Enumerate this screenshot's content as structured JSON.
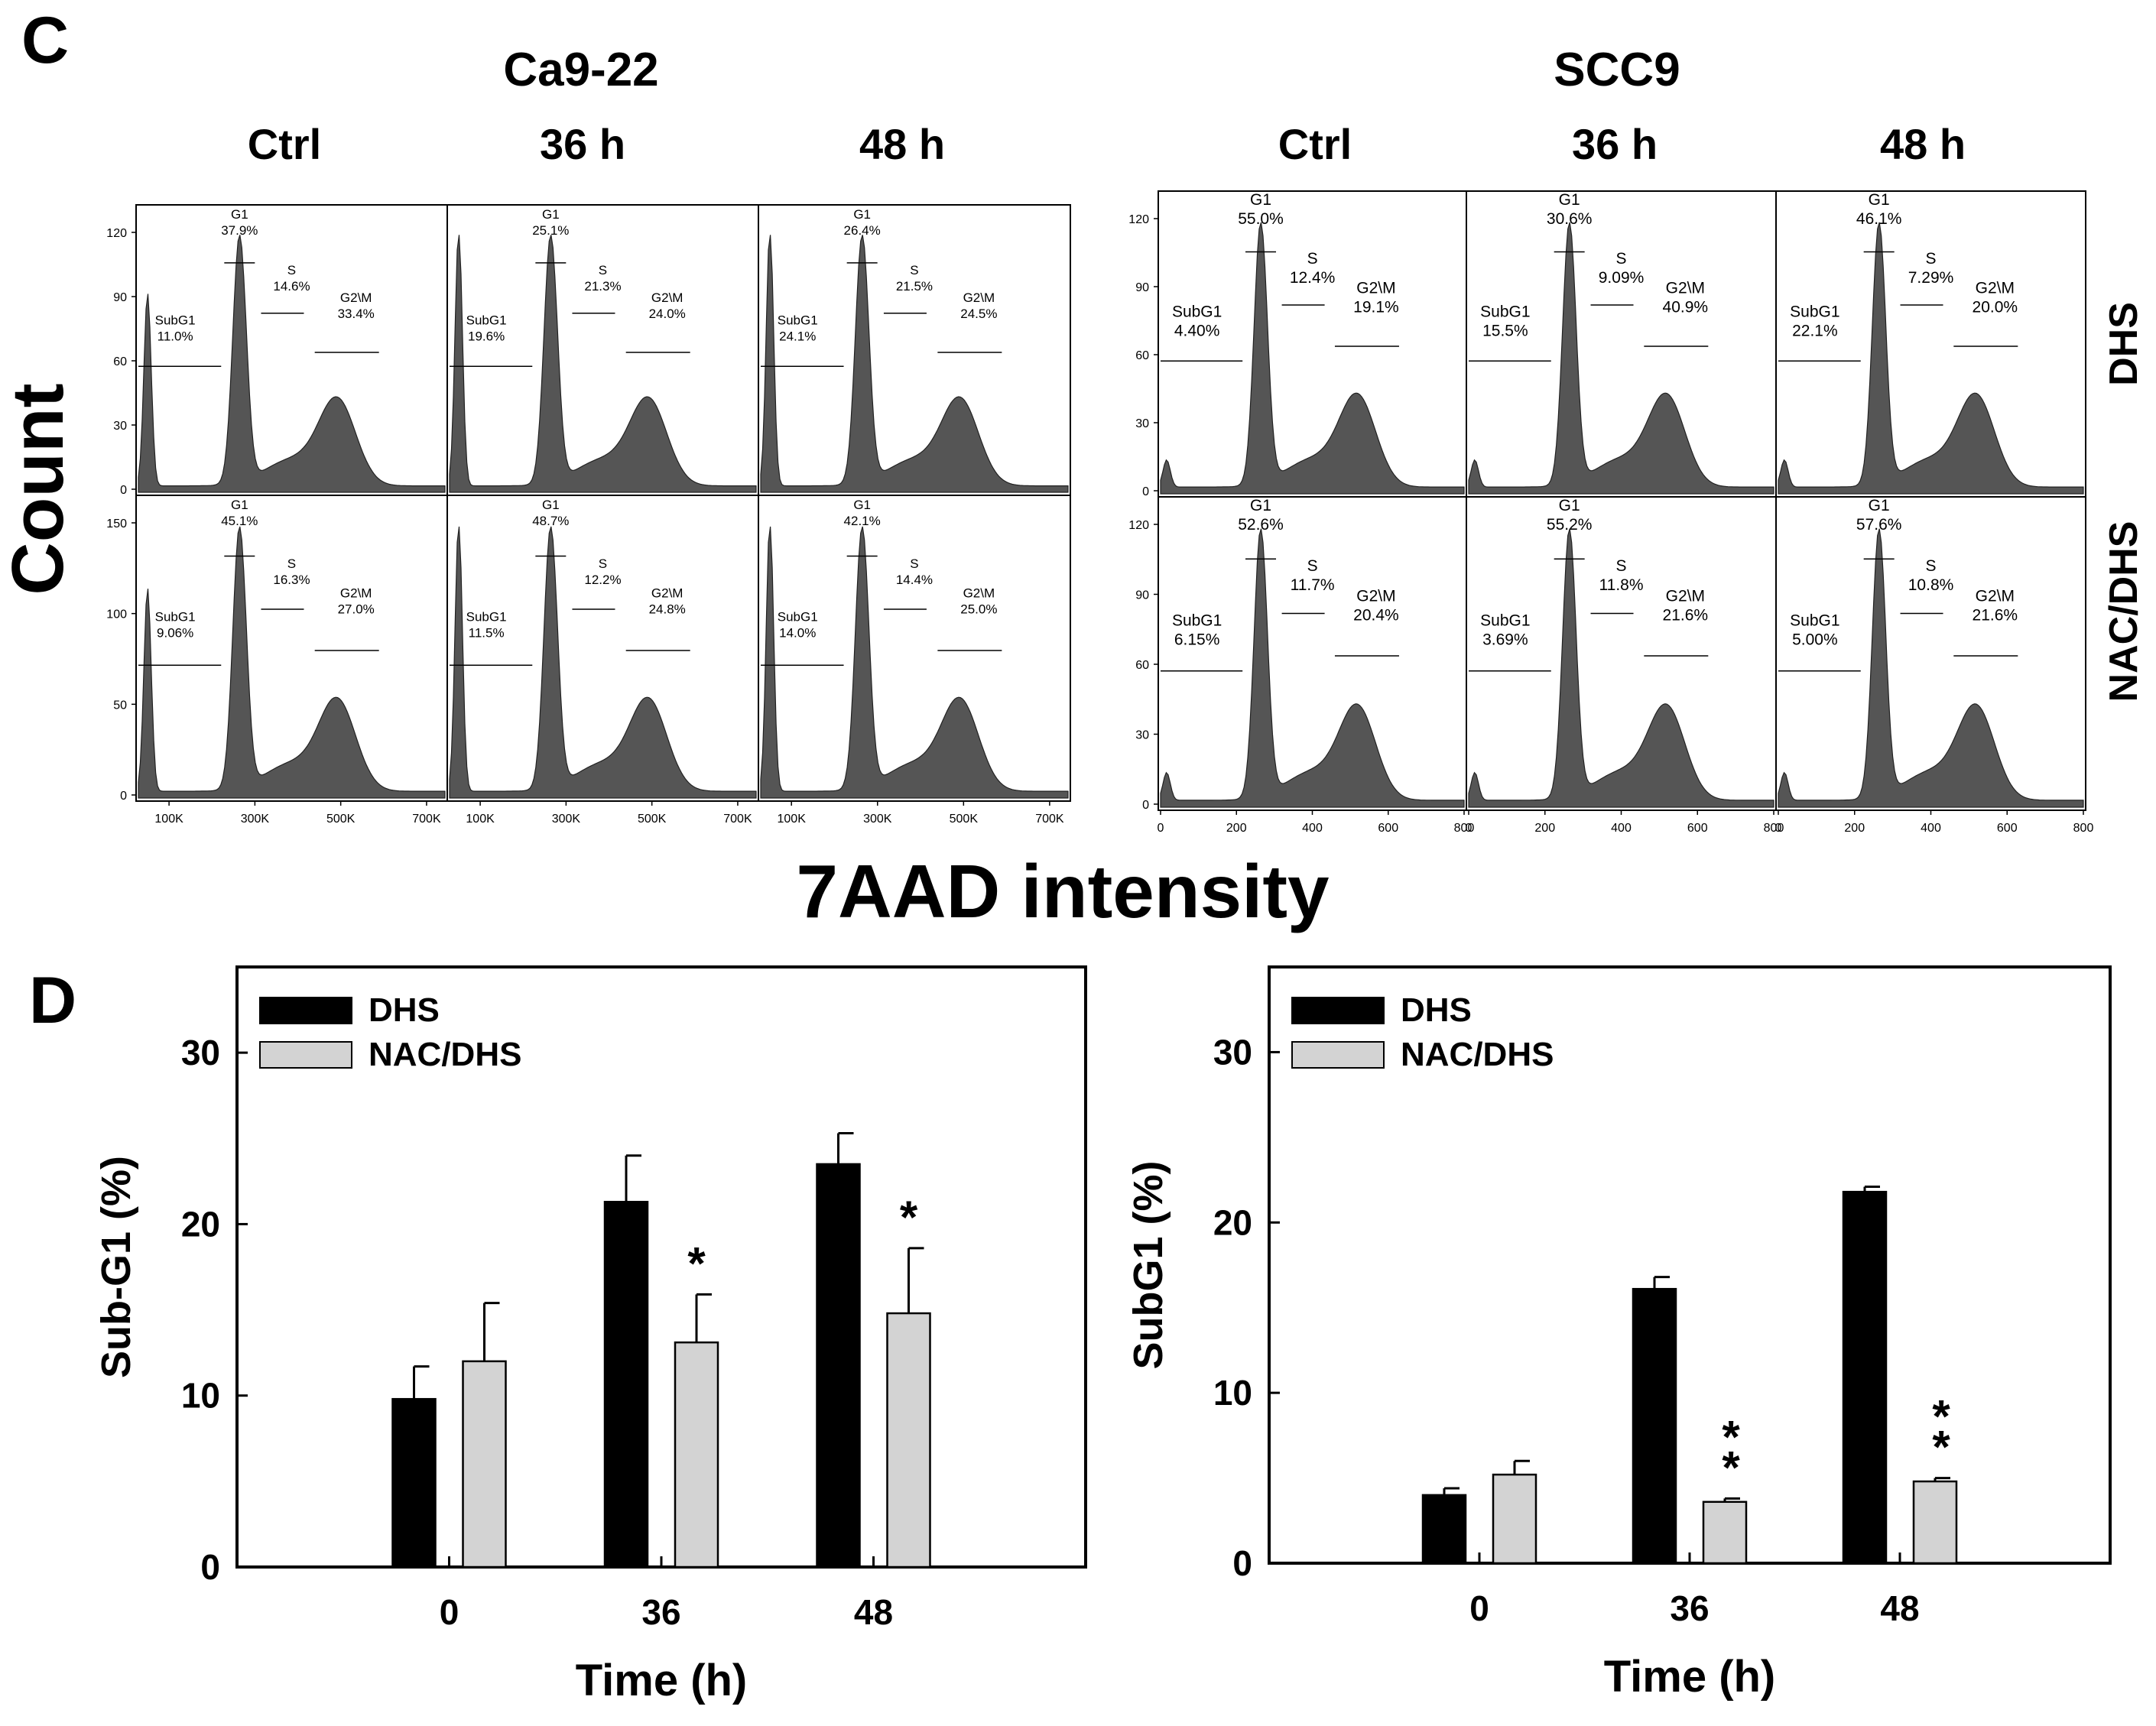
{
  "panel_c": {
    "letter": "C",
    "y_label": "Count",
    "x_label": "7AAD intensity",
    "row_labels": [
      "DHS",
      "NAC/DHS"
    ],
    "ca922": {
      "title": "Ca9-22",
      "columns": [
        "Ctrl",
        "36 h",
        "48 h"
      ],
      "x_ticks": [
        "100K",
        "300K",
        "500K",
        "700K"
      ],
      "y_ticks_top": [
        "0",
        "30",
        "60",
        "90",
        "120"
      ],
      "y_ticks_bottom": [
        "0",
        "50",
        "100",
        "150"
      ]
    },
    "scc9": {
      "title": "SCC9",
      "columns": [
        "Ctrl",
        "36 h",
        "48 h"
      ],
      "x_ticks": [
        "0",
        "200",
        "400",
        "600",
        "800"
      ],
      "y_ticks": [
        "0",
        "30",
        "60",
        "90",
        "120"
      ]
    },
    "gate_labels": {
      "subg1": "SubG1",
      "g1": "G1",
      "s": "S",
      "g2m": "G2\\M"
    },
    "gates": {
      "ca922_dhs": [
        {
          "subg1": "11.0%",
          "g1": "37.9%",
          "s": "14.6%",
          "g2m": "33.4%"
        },
        {
          "subg1": "19.6%",
          "g1": "25.1%",
          "s": "21.3%",
          "g2m": "24.0%"
        },
        {
          "subg1": "24.1%",
          "g1": "26.4%",
          "s": "21.5%",
          "g2m": "24.5%"
        }
      ],
      "ca922_nacdhs": [
        {
          "subg1": "9.06%",
          "g1": "45.1%",
          "s": "16.3%",
          "g2m": "27.0%"
        },
        {
          "subg1": "11.5%",
          "g1": "48.7%",
          "s": "12.2%",
          "g2m": "24.8%"
        },
        {
          "subg1": "14.0%",
          "g1": "42.1%",
          "s": "14.4%",
          "g2m": "25.0%"
        }
      ],
      "scc9_dhs": [
        {
          "subg1": "4.40%",
          "g1": "55.0%",
          "s": "12.4%",
          "g2m": "19.1%"
        },
        {
          "subg1": "15.5%",
          "g1": "30.6%",
          "s": "9.09%",
          "g2m": "40.9%"
        },
        {
          "subg1": "22.1%",
          "g1": "46.1%",
          "s": "7.29%",
          "g2m": "20.0%"
        }
      ],
      "scc9_nacdhs": [
        {
          "subg1": "6.15%",
          "g1": "52.6%",
          "s": "11.7%",
          "g2m": "20.4%"
        },
        {
          "subg1": "3.69%",
          "g1": "55.2%",
          "s": "11.8%",
          "g2m": "21.6%"
        },
        {
          "subg1": "5.00%",
          "g1": "57.6%",
          "s": "10.8%",
          "g2m": "21.6%"
        }
      ]
    }
  },
  "panel_d": {
    "letter": "D"
  },
  "colors": {
    "dhs": "#000000",
    "nac_dhs": "#d3d3d3",
    "histogram": "#555555"
  },
  "chart_data": [
    {
      "type": "bar",
      "categories": [
        "0",
        "36",
        "48"
      ],
      "series": [
        {
          "name": "DHS",
          "values": [
            9.8,
            21.3,
            23.5
          ],
          "errors": [
            1.9,
            2.7,
            1.8
          ]
        },
        {
          "name": "NAC/DHS",
          "values": [
            12.0,
            13.1,
            14.8
          ],
          "errors": [
            3.4,
            2.8,
            3.8
          ]
        }
      ],
      "annotations": [
        "",
        "*",
        "*"
      ],
      "xlabel": "Time (h)",
      "ylabel": "Sub-G1 (%)",
      "ylim": [
        0,
        35
      ],
      "yticks": [
        "0",
        "10",
        "20",
        "30"
      ],
      "legend": "top-left"
    },
    {
      "type": "bar",
      "categories": [
        "0",
        "36",
        "48"
      ],
      "series": [
        {
          "name": "DHS",
          "values": [
            4.0,
            16.1,
            21.8
          ],
          "errors": [
            0.4,
            0.7,
            0.3
          ]
        },
        {
          "name": "NAC/DHS",
          "values": [
            5.2,
            3.6,
            4.8
          ],
          "errors": [
            0.8,
            0.2,
            0.2
          ]
        }
      ],
      "annotations": [
        "",
        "**",
        "**"
      ],
      "xlabel": "Time (h)",
      "ylabel": "SubG1 (%)",
      "ylim": [
        0,
        35
      ],
      "yticks": [
        "0",
        "10",
        "20",
        "30"
      ],
      "legend": "top-left"
    }
  ]
}
